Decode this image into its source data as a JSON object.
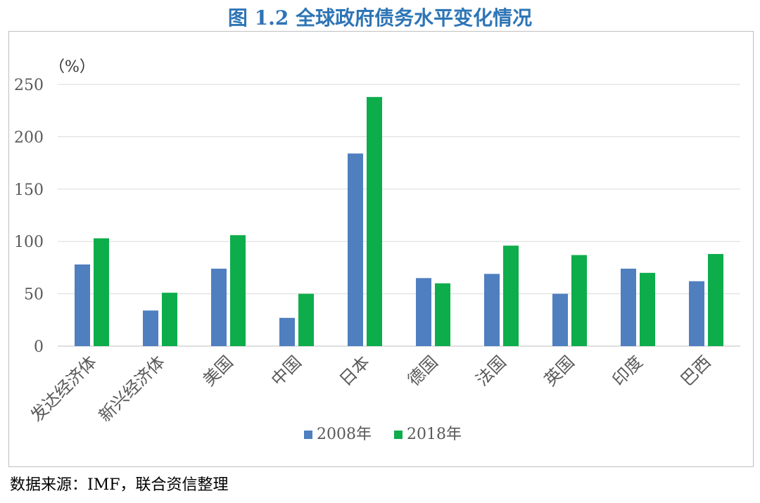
{
  "title": "图 1.2 全球政府债务水平变化情况",
  "source": "数据来源：IMF，联合资信整理",
  "chart_data": {
    "type": "bar",
    "unit_label": "（%）",
    "categories": [
      "发达经济体",
      "新兴经济体",
      "美国",
      "中国",
      "日本",
      "德国",
      "法国",
      "英国",
      "印度",
      "巴西"
    ],
    "series": [
      {
        "name": "2008年",
        "color": "#4f7fbf",
        "values": [
          78,
          34,
          74,
          27,
          184,
          65,
          69,
          50,
          74,
          62
        ]
      },
      {
        "name": "2018年",
        "color": "#0ead4c",
        "values": [
          103,
          51,
          106,
          50,
          238,
          60,
          96,
          87,
          70,
          88
        ]
      }
    ],
    "ylim": [
      0,
      250
    ],
    "yticks": [
      0,
      50,
      100,
      150,
      200,
      250
    ],
    "grid": true,
    "legend_position": "bottom"
  }
}
